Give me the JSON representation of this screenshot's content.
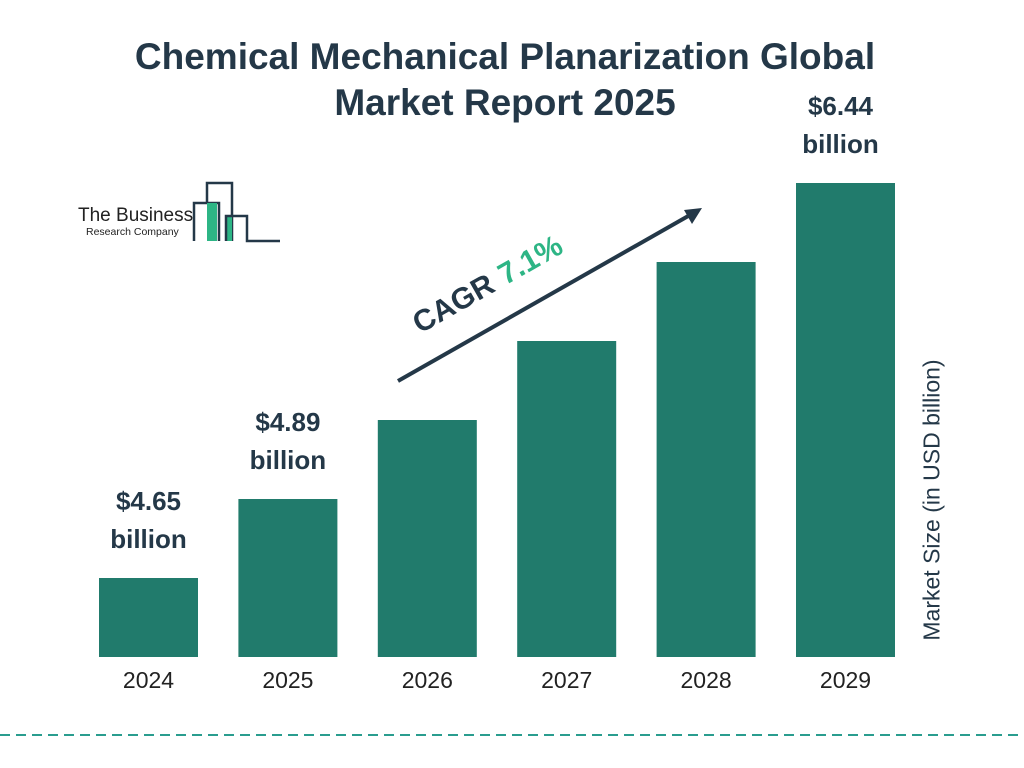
{
  "title_line1": "Chemical Mechanical Planarization Global",
  "title_line2": "Market Report 2025",
  "logo": {
    "line1": "The Business",
    "line2": "Research Company"
  },
  "colors": {
    "bar": "#217b6c",
    "text": "#243848",
    "cagr_accent": "#2db585",
    "dash": "#2a9d8f"
  },
  "chart_data": {
    "type": "bar",
    "categories": [
      "2024",
      "2025",
      "2026",
      "2027",
      "2028",
      "2029"
    ],
    "values": [
      4.65,
      4.89,
      5.24,
      5.61,
      6.01,
      6.44
    ],
    "data_labels": [
      {
        "index": 0,
        "value": "$4.65",
        "unit": "billion"
      },
      {
        "index": 1,
        "value": "$4.89",
        "unit": "billion"
      },
      {
        "index": 5,
        "value": "$6.44",
        "unit": "billion"
      }
    ],
    "ylabel": "Market Size (in USD billion)",
    "annotation": {
      "label": "CAGR",
      "value": "7.1%"
    },
    "grid": false
  }
}
